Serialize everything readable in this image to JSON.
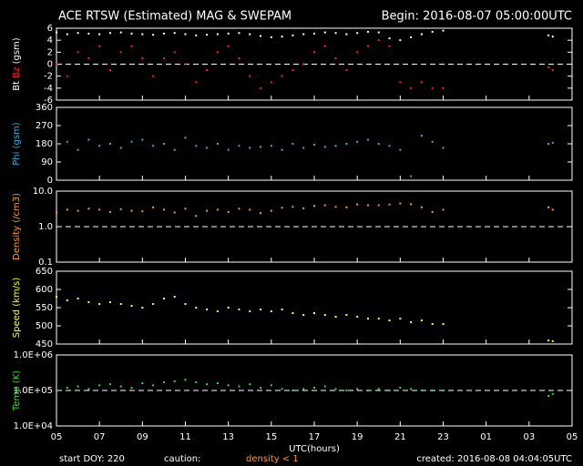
{
  "header": {
    "title": "ACE RTSW (Estimated) MAG & SWEPAM",
    "begin": "Begin: 2016-08-07 05:00:00UTC"
  },
  "chart_data": [
    {
      "type": "scatter",
      "ylabel": "(gsm)",
      "ylim": [
        -6,
        6
      ],
      "yticks": [
        6,
        4,
        2,
        0,
        -2,
        -4,
        -6
      ],
      "hline": 0,
      "xlim": [
        0,
        24
      ],
      "xticks": [
        {
          "value": 0,
          "label": "05"
        },
        {
          "value": 2,
          "label": "07"
        },
        {
          "value": 4,
          "label": "09"
        },
        {
          "value": 6,
          "label": "11"
        },
        {
          "value": 8,
          "label": "13"
        },
        {
          "value": 10,
          "label": "15"
        },
        {
          "value": 12,
          "label": "17"
        },
        {
          "value": 14,
          "label": "19"
        },
        {
          "value": 16,
          "label": "21"
        },
        {
          "value": 18,
          "label": "23"
        },
        {
          "value": 20,
          "label": "01"
        },
        {
          "value": 22,
          "label": "03"
        },
        {
          "value": 24,
          "label": "05"
        }
      ],
      "x": [
        0,
        0.5,
        1,
        1.5,
        2,
        2.5,
        3,
        3.5,
        4,
        4.5,
        5,
        5.5,
        6,
        6.5,
        7,
        7.5,
        8,
        8.5,
        9,
        9.5,
        10,
        10.5,
        11,
        11.5,
        12,
        12.5,
        13,
        13.5,
        14,
        14.5,
        15,
        15.5,
        16,
        16.5,
        17,
        17.5,
        18,
        22.9,
        23.1
      ],
      "series": [
        {
          "name": "Bt",
          "color": "#ffffff",
          "values": [
            5.3,
            5.0,
            5.2,
            5.1,
            5.0,
            5.2,
            5.3,
            5.1,
            5.0,
            4.9,
            5.1,
            5.2,
            5.0,
            4.8,
            4.9,
            5.0,
            5.1,
            5.2,
            5.0,
            4.7,
            4.5,
            4.6,
            4.8,
            5.0,
            5.1,
            5.3,
            5.2,
            5.0,
            5.2,
            5.4,
            5.3,
            4.3,
            4.0,
            4.5,
            5.0,
            5.4,
            5.6,
            4.8,
            4.6
          ]
        },
        {
          "name": "Bz",
          "color": "#ff2020",
          "values": [
            0,
            -2,
            2,
            1,
            3,
            -1,
            2,
            3,
            1,
            -2,
            1,
            2,
            0,
            -3,
            -1,
            2,
            3,
            1,
            -2,
            -4,
            -3,
            -2,
            -1,
            0,
            2,
            3,
            1,
            -1,
            2,
            3,
            4,
            3,
            -3,
            -4,
            -3,
            -4,
            -4,
            -0.5,
            -1
          ]
        }
      ]
    },
    {
      "type": "scatter",
      "ylabel": "Phi (gsm)",
      "ylim": [
        0,
        360
      ],
      "yticks": [
        0,
        90,
        180,
        270,
        360
      ],
      "xlim": [
        0,
        24
      ],
      "xticks": [
        {
          "value": 0,
          "label": "05"
        },
        {
          "value": 2,
          "label": "07"
        },
        {
          "value": 4,
          "label": "09"
        },
        {
          "value": 6,
          "label": "11"
        },
        {
          "value": 8,
          "label": "13"
        },
        {
          "value": 10,
          "label": "15"
        },
        {
          "value": 12,
          "label": "17"
        },
        {
          "value": 14,
          "label": "19"
        },
        {
          "value": 16,
          "label": "21"
        },
        {
          "value": 18,
          "label": "23"
        },
        {
          "value": 20,
          "label": "01"
        },
        {
          "value": 22,
          "label": "03"
        },
        {
          "value": 24,
          "label": "05"
        }
      ],
      "x": [
        0,
        0.5,
        1,
        1.5,
        2,
        2.5,
        3,
        3.5,
        4,
        4.5,
        5,
        5.5,
        6,
        6.5,
        7,
        7.5,
        8,
        8.5,
        9,
        9.5,
        10,
        10.5,
        11,
        11.5,
        12,
        12.5,
        13,
        13.5,
        14,
        14.5,
        15,
        15.5,
        16,
        16.5,
        17,
        17.5,
        18,
        22.9,
        23.1
      ],
      "series": [
        {
          "name": "Phi",
          "color": "#30b0e0",
          "values": [
            180,
            190,
            150,
            200,
            170,
            180,
            160,
            190,
            200,
            170,
            180,
            150,
            210,
            170,
            160,
            180,
            150,
            170,
            160,
            165,
            170,
            150,
            180,
            160,
            175,
            165,
            170,
            180,
            190,
            200,
            180,
            170,
            150,
            20,
            220,
            190,
            160,
            180,
            185
          ]
        }
      ]
    },
    {
      "type": "scatter",
      "ylabel": "Density (/cm3)",
      "log": true,
      "ylim": [
        0.1,
        10
      ],
      "yticks": [
        {
          "value": 0.1,
          "label": "0.1"
        },
        {
          "value": 1,
          "label": "1.0"
        },
        {
          "value": 10,
          "label": "10.0"
        }
      ],
      "hline": 1,
      "xlim": [
        0,
        24
      ],
      "xticks": [
        {
          "value": 0,
          "label": "05"
        },
        {
          "value": 2,
          "label": "07"
        },
        {
          "value": 4,
          "label": "09"
        },
        {
          "value": 6,
          "label": "11"
        },
        {
          "value": 8,
          "label": "13"
        },
        {
          "value": 10,
          "label": "15"
        },
        {
          "value": 12,
          "label": "17"
        },
        {
          "value": 14,
          "label": "19"
        },
        {
          "value": 16,
          "label": "21"
        },
        {
          "value": 18,
          "label": "23"
        },
        {
          "value": 20,
          "label": "01"
        },
        {
          "value": 22,
          "label": "03"
        },
        {
          "value": 24,
          "label": "05"
        }
      ],
      "x": [
        0,
        0.5,
        1,
        1.5,
        2,
        2.5,
        3,
        3.5,
        4,
        4.5,
        5,
        5.5,
        6,
        6.5,
        7,
        7.5,
        8,
        8.5,
        9,
        9.5,
        10,
        10.5,
        11,
        11.5,
        12,
        12.5,
        13,
        13.5,
        14,
        14.5,
        15,
        15.5,
        16,
        16.5,
        17,
        17.5,
        18,
        22.9,
        23.1
      ],
      "series": [
        {
          "name": "Density",
          "color": "#ff9a30",
          "values": [
            2.5,
            3,
            2.8,
            3.2,
            3,
            2.6,
            3.1,
            2.8,
            2.7,
            3.5,
            3,
            2.5,
            3.2,
            2,
            2.8,
            3,
            2.6,
            3.2,
            3,
            2.4,
            2.8,
            3.4,
            3.6,
            3.3,
            3.8,
            4,
            3.6,
            3.5,
            4.2,
            4,
            4,
            4.2,
            4.5,
            4.3,
            3.5,
            2.6,
            3,
            3.5,
            3
          ]
        }
      ]
    },
    {
      "type": "scatter",
      "ylabel": "Speed (km/s)",
      "ylim": [
        450,
        650
      ],
      "yticks": [
        450,
        500,
        550,
        600,
        650
      ],
      "xlim": [
        0,
        24
      ],
      "xticks": [
        {
          "value": 0,
          "label": "05"
        },
        {
          "value": 2,
          "label": "07"
        },
        {
          "value": 4,
          "label": "09"
        },
        {
          "value": 6,
          "label": "11"
        },
        {
          "value": 8,
          "label": "13"
        },
        {
          "value": 10,
          "label": "15"
        },
        {
          "value": 12,
          "label": "17"
        },
        {
          "value": 14,
          "label": "19"
        },
        {
          "value": 16,
          "label": "21"
        },
        {
          "value": 18,
          "label": "23"
        },
        {
          "value": 20,
          "label": "01"
        },
        {
          "value": 22,
          "label": "03"
        },
        {
          "value": 24,
          "label": "05"
        }
      ],
      "x": [
        0,
        0.5,
        1,
        1.5,
        2,
        2.5,
        3,
        3.5,
        4,
        4.5,
        5,
        5.5,
        6,
        6.5,
        7,
        7.5,
        8,
        8.5,
        9,
        9.5,
        10,
        10.5,
        11,
        11.5,
        12,
        12.5,
        13,
        13.5,
        14,
        14.5,
        15,
        15.5,
        16,
        16.5,
        17,
        17.5,
        18,
        22.9,
        23.1
      ],
      "series": [
        {
          "name": "Speed",
          "color": "#ffff30",
          "values": [
            580,
            570,
            575,
            565,
            560,
            565,
            560,
            555,
            550,
            560,
            575,
            580,
            560,
            550,
            545,
            540,
            550,
            545,
            540,
            545,
            540,
            545,
            535,
            530,
            535,
            530,
            525,
            530,
            525,
            520,
            520,
            515,
            520,
            510,
            515,
            505,
            505,
            460,
            458
          ]
        }
      ]
    },
    {
      "type": "scatter",
      "ylabel": "Temp (K)",
      "log": true,
      "ylim": [
        10000,
        1000000
      ],
      "yticks": [
        {
          "value": 10000,
          "label": "1.0E+04"
        },
        {
          "value": 100000,
          "label": "1.0E+05"
        },
        {
          "value": 1000000,
          "label": "1.0E+06"
        }
      ],
      "hline": 100000,
      "xlim": [
        0,
        24
      ],
      "xticks": [
        {
          "value": 0,
          "label": "05"
        },
        {
          "value": 2,
          "label": "07"
        },
        {
          "value": 4,
          "label": "09"
        },
        {
          "value": 6,
          "label": "11"
        },
        {
          "value": 8,
          "label": "13"
        },
        {
          "value": 10,
          "label": "15"
        },
        {
          "value": 12,
          "label": "17"
        },
        {
          "value": 14,
          "label": "19"
        },
        {
          "value": 16,
          "label": "21"
        },
        {
          "value": 18,
          "label": "23"
        },
        {
          "value": 20,
          "label": "01"
        },
        {
          "value": 22,
          "label": "03"
        },
        {
          "value": 24,
          "label": "05"
        }
      ],
      "xlabel": "UTC(hours)",
      "x": [
        0,
        0.5,
        1,
        1.5,
        2,
        2.5,
        3,
        3.5,
        4,
        4.5,
        5,
        5.5,
        6,
        6.5,
        7,
        7.5,
        8,
        8.5,
        9,
        9.5,
        10,
        10.5,
        11,
        11.5,
        12,
        12.5,
        13,
        13.5,
        14,
        14.5,
        15,
        15.5,
        16,
        16.5,
        17,
        17.5,
        18,
        22.9,
        23.1
      ],
      "series": [
        {
          "name": "Temp",
          "color": "#30e030",
          "values": [
            100000,
            120000,
            130000,
            110000,
            140000,
            150000,
            130000,
            120000,
            160000,
            140000,
            170000,
            180000,
            200000,
            170000,
            150000,
            160000,
            140000,
            130000,
            150000,
            120000,
            140000,
            110000,
            100000,
            110000,
            120000,
            130000,
            110000,
            100000,
            110000,
            100000,
            110000,
            100000,
            120000,
            110000,
            100000,
            100000,
            100000,
            70000,
            80000
          ]
        }
      ]
    }
  ],
  "footer": {
    "start": "start DOY: 220",
    "caution": "caution:",
    "density_note": "density < 1",
    "created": "created: 2016-08-08 04:04:05UTC"
  }
}
